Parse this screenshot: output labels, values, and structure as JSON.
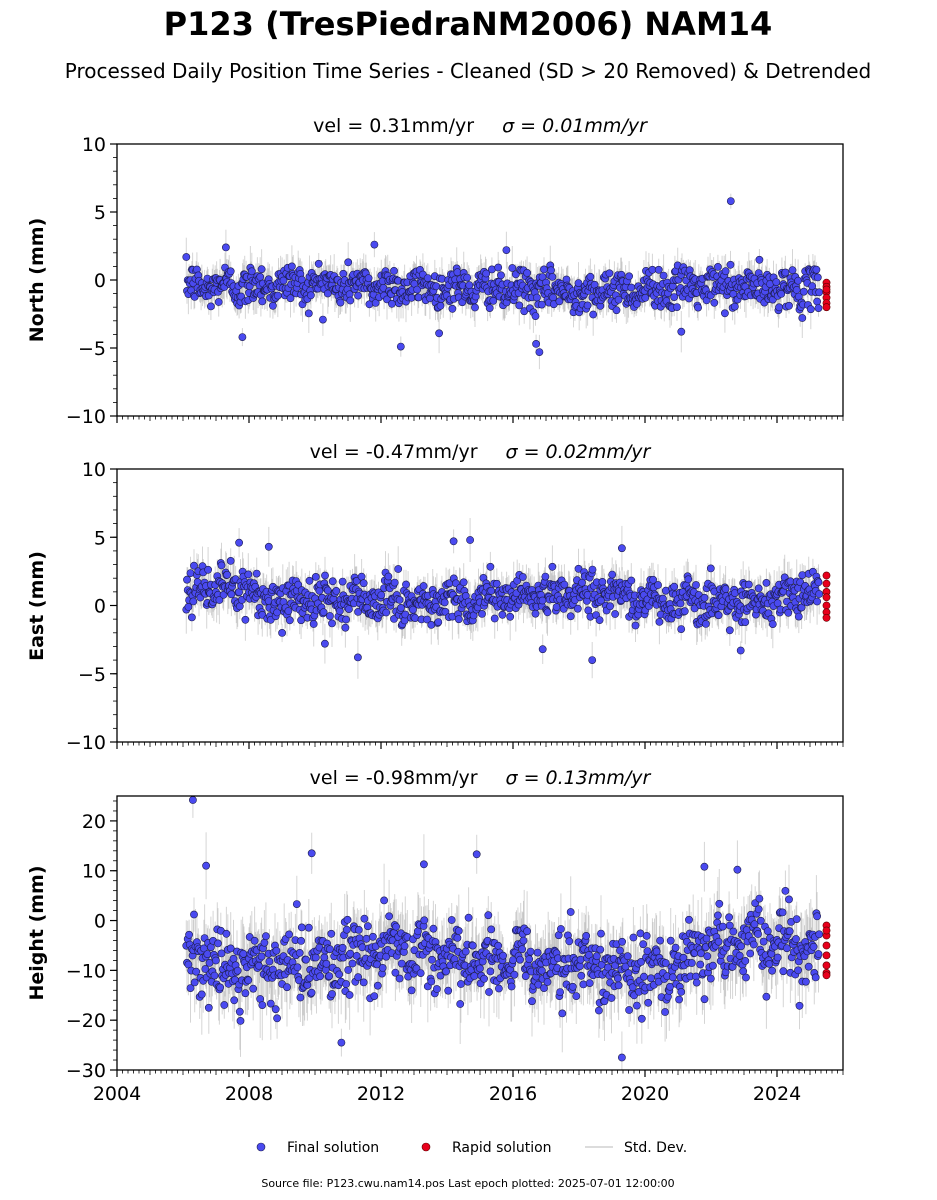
{
  "title": "P123 (TresPiedraNM2006) NAM14",
  "subtitle": "Processed Daily Position Time Series - Cleaned (SD > 20 Removed) & Detrended",
  "footer": "Source file: P123.cwu.nam14.pos  Last epoch plotted: 2025-07-01 12:00:00",
  "legend": {
    "final": "Final solution",
    "rapid": "Rapid solution",
    "std": "Std. Dev."
  },
  "colors": {
    "final": "#4a4af0",
    "rapid": "#e8001c",
    "std": "#b8b8b8",
    "edge": "#1c1c4a"
  },
  "chart_data": [
    {
      "type": "scatter",
      "title_text": "vel = 0.31mm/yr",
      "sigma_text": "σ = 0.01mm/yr",
      "ylabel": "North (mm)",
      "xlim": [
        2004,
        2026
      ],
      "ylim": [
        -10,
        10
      ],
      "yticks": [
        10,
        5,
        0,
        -5,
        -10
      ],
      "yticklabels": [
        "10",
        "5",
        "0",
        "−5",
        "−10"
      ],
      "data_start": 2006.1,
      "data_end": 2025.28,
      "baseline": [
        [
          2006,
          -0.5
        ],
        [
          2010,
          -0.3
        ],
        [
          2014,
          -0.6
        ],
        [
          2018,
          -0.9
        ],
        [
          2022,
          -0.5
        ],
        [
          2025.3,
          -0.7
        ]
      ],
      "scatter_sd": 0.9,
      "err_sd": 0.9,
      "outliers": [
        [
          2007.3,
          2.4
        ],
        [
          2011.8,
          2.6
        ],
        [
          2012.6,
          -4.9
        ],
        [
          2016.7,
          -4.7
        ],
        [
          2016.8,
          -5.3
        ],
        [
          2022.6,
          5.8
        ],
        [
          2021.1,
          -3.8
        ],
        [
          2007.8,
          -4.2
        ],
        [
          2015.8,
          2.2
        ]
      ],
      "rapid": [
        -0.2,
        -0.5,
        -0.9,
        -1.3,
        -1.7,
        -2.0,
        -0.7
      ],
      "rapid_x": 2025.5
    },
    {
      "type": "scatter",
      "title_text": "vel = -0.47mm/yr",
      "sigma_text": "σ = 0.02mm/yr",
      "ylabel": "East (mm)",
      "xlim": [
        2004,
        2026
      ],
      "ylim": [
        -10,
        10
      ],
      "yticks": [
        10,
        5,
        0,
        -5,
        -10
      ],
      "yticklabels": [
        "10",
        "5",
        "0",
        "−5",
        "−10"
      ],
      "data_start": 2006.1,
      "data_end": 2025.28,
      "baseline": [
        [
          2006,
          0.8
        ],
        [
          2007.8,
          1.6
        ],
        [
          2008.3,
          0.3
        ],
        [
          2011,
          0.4
        ],
        [
          2013,
          0.2
        ],
        [
          2015,
          0.5
        ],
        [
          2018,
          1.0
        ],
        [
          2021,
          0.3
        ],
        [
          2023,
          0.2
        ],
        [
          2025.3,
          1.2
        ]
      ],
      "scatter_sd": 1.0,
      "err_sd": 1.0,
      "outliers": [
        [
          2007.7,
          4.6
        ],
        [
          2008.6,
          4.3
        ],
        [
          2011.3,
          -3.8
        ],
        [
          2014.2,
          4.7
        ],
        [
          2014.7,
          4.8
        ],
        [
          2016.9,
          -3.2
        ],
        [
          2018.4,
          -4.0
        ],
        [
          2019.3,
          4.2
        ],
        [
          2022.9,
          -3.3
        ],
        [
          2010.3,
          -2.8
        ]
      ],
      "rapid": [
        2.2,
        1.6,
        1.0,
        0.6,
        0.0,
        -0.5,
        -0.9
      ],
      "rapid_x": 2025.5
    },
    {
      "type": "scatter",
      "title_text": "vel = -0.98mm/yr",
      "sigma_text": "σ = 0.13mm/yr",
      "ylabel": "Height (mm)",
      "xlim": [
        2004,
        2026
      ],
      "ylim": [
        -30,
        25
      ],
      "yticks": [
        20,
        10,
        0,
        -10,
        -20,
        -30
      ],
      "yticklabels": [
        "20",
        "10",
        "0",
        "−10",
        "−20",
        "−30"
      ],
      "xticks": [
        2004,
        2008,
        2012,
        2016,
        2020,
        2024
      ],
      "xticklabels": [
        "2004",
        "2008",
        "2012",
        "2016",
        "2020",
        "2024"
      ],
      "data_start": 2006.1,
      "data_end": 2025.28,
      "baseline": [
        [
          2006,
          -8
        ],
        [
          2008,
          -10
        ],
        [
          2010,
          -9
        ],
        [
          2012,
          -6
        ],
        [
          2014,
          -7
        ],
        [
          2016,
          -8
        ],
        [
          2018,
          -9
        ],
        [
          2020,
          -11
        ],
        [
          2022,
          -6
        ],
        [
          2024,
          -4
        ],
        [
          2025.3,
          -7
        ]
      ],
      "scatter_sd": 4.3,
      "err_sd": 4.5,
      "outliers": [
        [
          2006.3,
          24.2
        ],
        [
          2009.9,
          13.5
        ],
        [
          2013.3,
          11.3
        ],
        [
          2014.9,
          13.3
        ],
        [
          2019.3,
          -27.5
        ],
        [
          2021.8,
          10.8
        ],
        [
          2022.8,
          10.2
        ],
        [
          2006.7,
          11.0
        ],
        [
          2010.8,
          -24.5
        ]
      ],
      "rapid": [
        -1.0,
        -3.0,
        -5.0,
        -7.0,
        -9.0,
        -10.5,
        -11.0,
        -2.0
      ],
      "rapid_x": 2025.5
    }
  ]
}
